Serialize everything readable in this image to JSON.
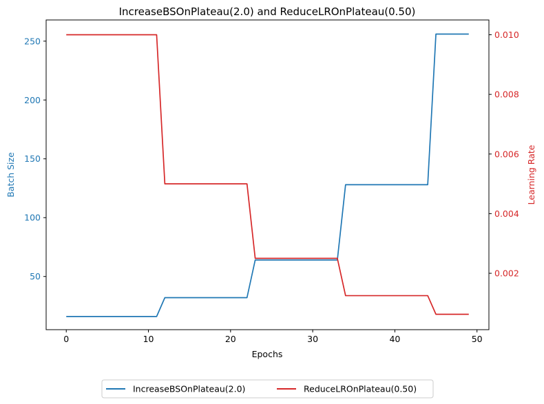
{
  "chart_data": {
    "type": "line",
    "title": "IncreaseBSOnPlateau(2.0) and ReduceLROnPlateau(0.50)",
    "xlabel": "Epochs",
    "ylabel_left": "Batch Size",
    "ylabel_right": "Learning Rate",
    "xlim": [
      -2.45,
      51.45
    ],
    "ylim_left": [
      4.8,
      268.0
    ],
    "ylim_right": [
      0.000109,
      0.010496
    ],
    "x_ticks": [
      0,
      10,
      20,
      30,
      40,
      50
    ],
    "x_tick_labels": [
      "0",
      "10",
      "20",
      "30",
      "40",
      "50"
    ],
    "y_left_ticks": [
      50,
      100,
      150,
      200,
      250
    ],
    "y_left_tick_labels": [
      "50",
      "100",
      "150",
      "200",
      "250"
    ],
    "y_right_ticks": [
      0.002,
      0.004,
      0.006,
      0.008,
      0.01
    ],
    "y_right_tick_labels": [
      "0.002",
      "0.004",
      "0.006",
      "0.008",
      "0.010"
    ],
    "grid": false,
    "legend_position": "bottom-center-outside",
    "series": [
      {
        "name": "IncreaseBSOnPlateau(2.0)",
        "axis": "left",
        "color": "#1f77b4",
        "x": [
          0,
          11,
          12,
          22,
          23,
          33,
          34,
          44,
          45,
          49
        ],
        "y": [
          16,
          16,
          32,
          32,
          64,
          64,
          128,
          128,
          256,
          256
        ]
      },
      {
        "name": "ReduceLROnPlateau(0.50)",
        "axis": "right",
        "color": "#d62728",
        "x": [
          0,
          11,
          12,
          22,
          23,
          33,
          34,
          44,
          45,
          49
        ],
        "y": [
          0.01,
          0.01,
          0.005,
          0.005,
          0.0025,
          0.0025,
          0.00125,
          0.00125,
          0.000625,
          0.000625
        ]
      }
    ]
  }
}
